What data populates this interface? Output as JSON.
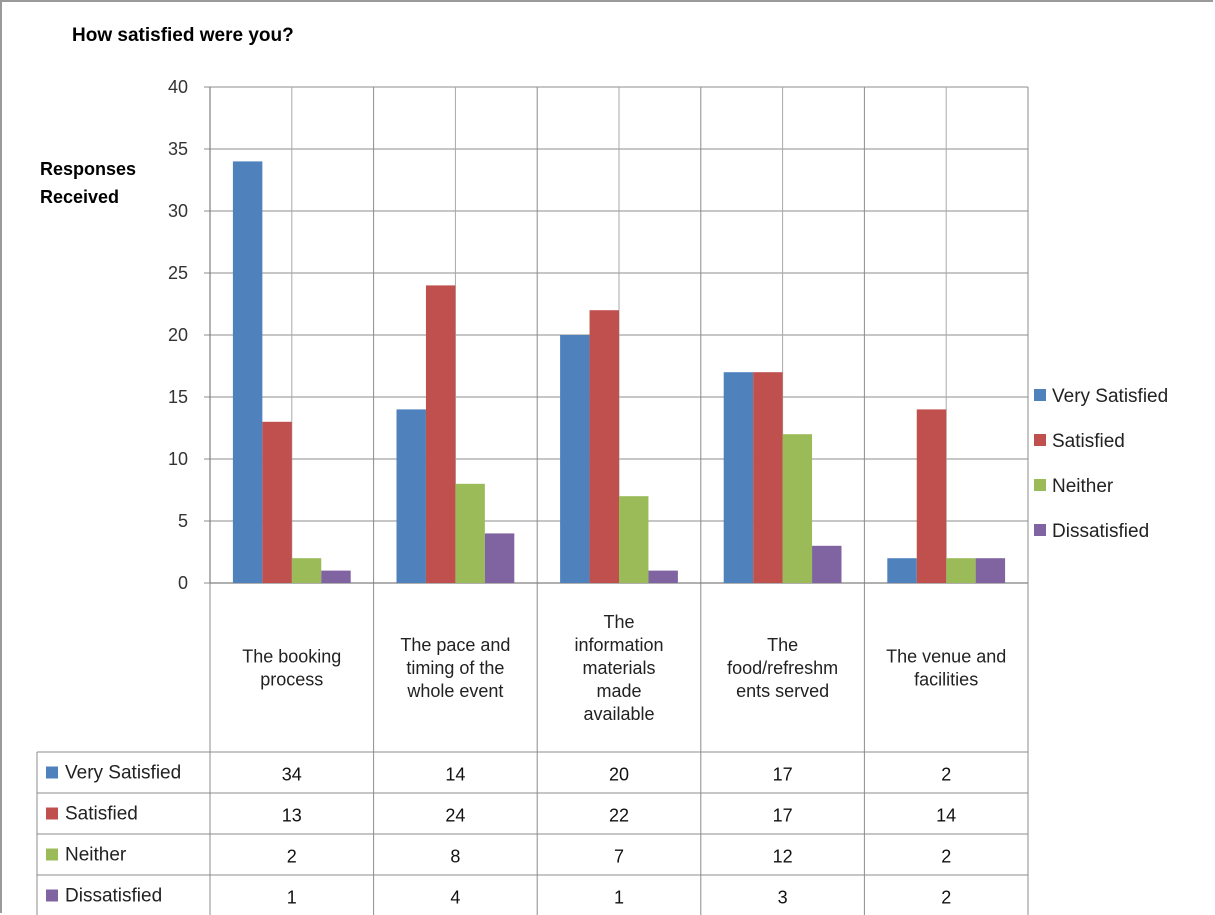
{
  "chart_data": {
    "type": "bar",
    "title": "How satisfied were you?",
    "ylabel": [
      "Responses",
      "Received"
    ],
    "xlabel": "",
    "ylim": [
      0,
      40
    ],
    "yticks": [
      0,
      5,
      10,
      15,
      20,
      25,
      30,
      35,
      40
    ],
    "grid": true,
    "legend": "right",
    "data_table": true,
    "categories": [
      [
        "The booking",
        "process"
      ],
      [
        "The pace and",
        "timing of the",
        "whole event"
      ],
      [
        "The",
        "information",
        "materials",
        "made",
        "available"
      ],
      [
        "The",
        "food/refreshm",
        "ents served"
      ],
      [
        "The venue and",
        "facilities"
      ]
    ],
    "series": [
      {
        "name": "Very Satisfied",
        "color": "#4F81BD",
        "values": [
          34,
          14,
          20,
          17,
          2
        ]
      },
      {
        "name": "Satisfied",
        "color": "#C0504D",
        "values": [
          13,
          24,
          22,
          17,
          14
        ]
      },
      {
        "name": "Neither",
        "color": "#9BBB59",
        "values": [
          2,
          8,
          7,
          12,
          2
        ]
      },
      {
        "name": "Dissatisfied",
        "color": "#8064A2",
        "values": [
          1,
          4,
          1,
          3,
          2
        ]
      }
    ]
  }
}
